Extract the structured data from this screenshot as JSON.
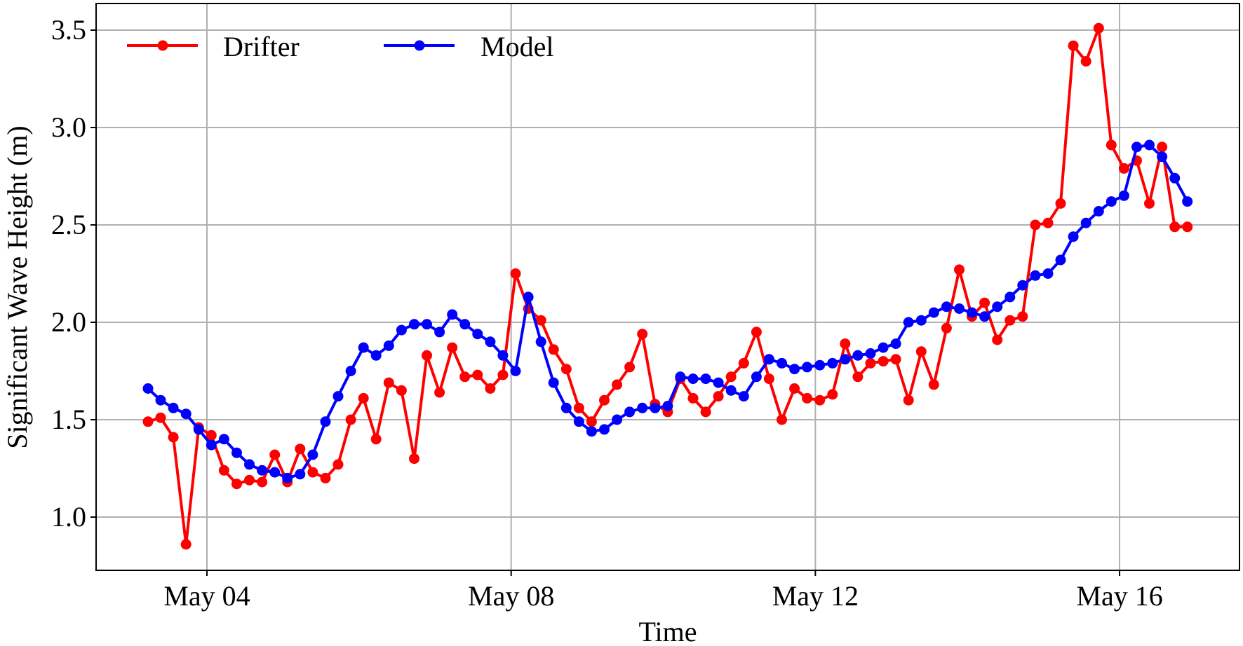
{
  "chart_data": {
    "type": "line",
    "title": "",
    "xlabel": "Time",
    "ylabel": "Significant Wave Height (m)",
    "ylim": [
      0.77,
      3.62
    ],
    "yticks": [
      1.0,
      1.5,
      2.0,
      2.5,
      3.0,
      3.5
    ],
    "ytick_labels": [
      "1.0",
      "1.5",
      "2.0",
      "2.5",
      "3.0",
      "3.5"
    ],
    "xtick_labels": [
      "May 04",
      "May 08",
      "May 12",
      "May 16"
    ],
    "xtick_days": [
      0,
      4,
      8,
      12
    ],
    "x_start_day_offset": -0.775,
    "x_step_days": 0.16667,
    "x_description": "4-hourly samples from ~May 03 05:00 to ~May 16 17:00",
    "grid": true,
    "legend_position": "upper left",
    "series": [
      {
        "name": "Drifter",
        "color": "#ff0000",
        "values": [
          1.49,
          1.51,
          1.41,
          0.86,
          1.46,
          1.42,
          1.24,
          1.17,
          1.19,
          1.18,
          1.32,
          1.18,
          1.35,
          1.23,
          1.2,
          1.27,
          1.5,
          1.61,
          1.4,
          1.69,
          1.65,
          1.3,
          1.83,
          1.64,
          1.87,
          1.72,
          1.73,
          1.66,
          1.73,
          2.25,
          2.07,
          2.01,
          1.86,
          1.76,
          1.56,
          1.49,
          1.6,
          1.68,
          1.77,
          1.94,
          1.58,
          1.54,
          1.71,
          1.61,
          1.54,
          1.62,
          1.72,
          1.79,
          1.95,
          1.71,
          1.5,
          1.66,
          1.61,
          1.6,
          1.63,
          1.89,
          1.72,
          1.79,
          1.8,
          1.81,
          1.6,
          1.85,
          1.68,
          1.97,
          2.27,
          2.03,
          2.1,
          1.91,
          2.01,
          2.03,
          2.5,
          2.51,
          2.61,
          3.42,
          3.34,
          3.51,
          2.91,
          2.79,
          2.83,
          2.61,
          2.9,
          2.49,
          2.49
        ]
      },
      {
        "name": "Model",
        "color": "#0000ff",
        "values": [
          1.66,
          1.6,
          1.56,
          1.53,
          1.45,
          1.37,
          1.4,
          1.33,
          1.27,
          1.24,
          1.23,
          1.2,
          1.22,
          1.32,
          1.49,
          1.62,
          1.75,
          1.87,
          1.83,
          1.88,
          1.96,
          1.99,
          1.99,
          1.95,
          2.04,
          1.99,
          1.94,
          1.9,
          1.83,
          1.75,
          2.13,
          1.9,
          1.69,
          1.56,
          1.49,
          1.44,
          1.45,
          1.5,
          1.54,
          1.56,
          1.56,
          1.57,
          1.72,
          1.71,
          1.71,
          1.69,
          1.65,
          1.62,
          1.72,
          1.81,
          1.79,
          1.76,
          1.77,
          1.78,
          1.79,
          1.81,
          1.83,
          1.84,
          1.87,
          1.89,
          2.0,
          2.01,
          2.05,
          2.08,
          2.07,
          2.05,
          2.03,
          2.08,
          2.13,
          2.19,
          2.24,
          2.25,
          2.32,
          2.44,
          2.51,
          2.57,
          2.62,
          2.65,
          2.9,
          2.91,
          2.85,
          2.74,
          2.62
        ]
      }
    ]
  },
  "legend": {
    "items": [
      {
        "label": "Drifter",
        "color": "#ff0000"
      },
      {
        "label": "Model",
        "color": "#0000ff"
      }
    ]
  },
  "axes": {
    "xlabel": "Time",
    "ylabel": "Significant Wave Height (m)"
  },
  "style": {
    "grid_color": "#b0b0b0",
    "axis_color": "#000000"
  }
}
